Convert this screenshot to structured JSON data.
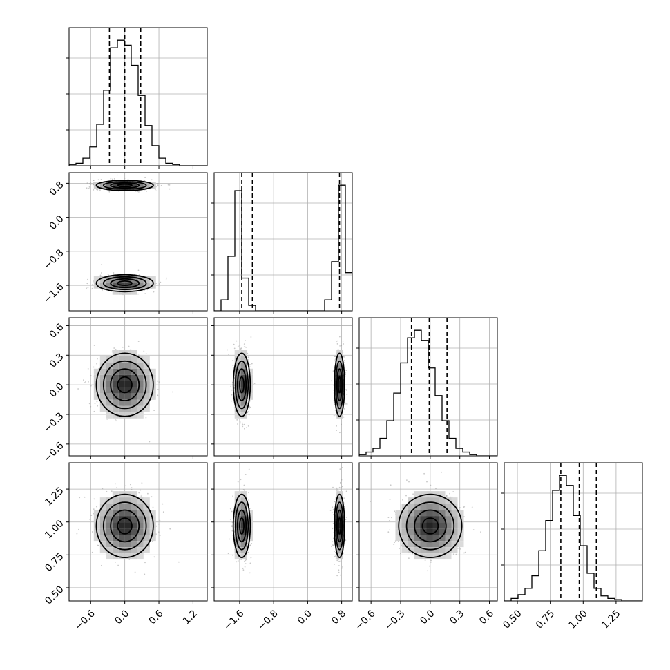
{
  "chart_data": {
    "type": "corner",
    "n_params": 4,
    "hist_bins": 20,
    "params": [
      {
        "range": [
          -0.98,
          1.45
        ],
        "ticks": [
          -0.6,
          0.0,
          0.6,
          1.2
        ],
        "tick_labels": [
          "−0.6",
          "0.0",
          "0.6",
          "1.2"
        ],
        "quantiles": [
          -0.27,
          0.0,
          0.28
        ],
        "hist": [
          1,
          2,
          6,
          15,
          33,
          60,
          94,
          100,
          96,
          80,
          56,
          32,
          16,
          6,
          2,
          1,
          0,
          0,
          0,
          0
        ]
      },
      {
        "range": [
          -2.2,
          1.05
        ],
        "ticks": [
          -1.6,
          -0.8,
          0.0,
          0.8
        ],
        "tick_labels": [
          "−1.6",
          "−0.8",
          "0.0",
          "0.8"
        ],
        "quantiles": [
          -1.55,
          -1.3,
          0.75
        ],
        "hist": [
          0,
          4,
          20,
          44,
          12,
          2,
          0,
          0,
          0,
          0,
          0,
          0,
          0,
          0,
          0,
          0,
          4,
          18,
          46,
          14
        ]
      },
      {
        "range": [
          -0.72,
          0.68
        ],
        "ticks": [
          -0.6,
          -0.3,
          0.0,
          0.3,
          0.6
        ],
        "tick_labels": [
          "−0.6",
          "−0.3",
          "0.0",
          "0.3",
          "0.6"
        ],
        "quantiles": [
          -0.19,
          -0.01,
          0.17
        ],
        "hist": [
          1,
          3,
          6,
          14,
          28,
          50,
          74,
          94,
          100,
          92,
          70,
          48,
          28,
          14,
          6,
          3,
          1,
          0,
          0,
          0
        ]
      },
      {
        "range": [
          0.4,
          1.45
        ],
        "ticks": [
          0.5,
          0.75,
          1.0,
          1.25
        ],
        "tick_labels": [
          "0.50",
          "0.75",
          "1.00",
          "1.25"
        ],
        "quantiles": [
          0.83,
          0.97,
          1.1
        ],
        "hist": [
          0,
          2,
          5,
          10,
          20,
          40,
          64,
          88,
          100,
          92,
          68,
          44,
          22,
          10,
          4,
          2,
          1,
          0,
          0,
          0
        ]
      }
    ],
    "components": [
      {
        "means": [
          0.0,
          -1.55,
          0.0,
          0.97
        ],
        "sds": [
          0.25,
          0.1,
          0.16,
          0.12
        ],
        "weight": 0.5
      },
      {
        "means": [
          0.0,
          0.75,
          0.0,
          0.97
        ],
        "sds": [
          0.25,
          0.06,
          0.16,
          0.12
        ],
        "weight": 0.5
      }
    ],
    "contour_sigma_levels": [
      0.5,
      1.0,
      1.5,
      2.0
    ],
    "colors": {
      "line": "#000000",
      "grid": "#b0b0b0",
      "scatter": "#9a9a9a"
    }
  }
}
